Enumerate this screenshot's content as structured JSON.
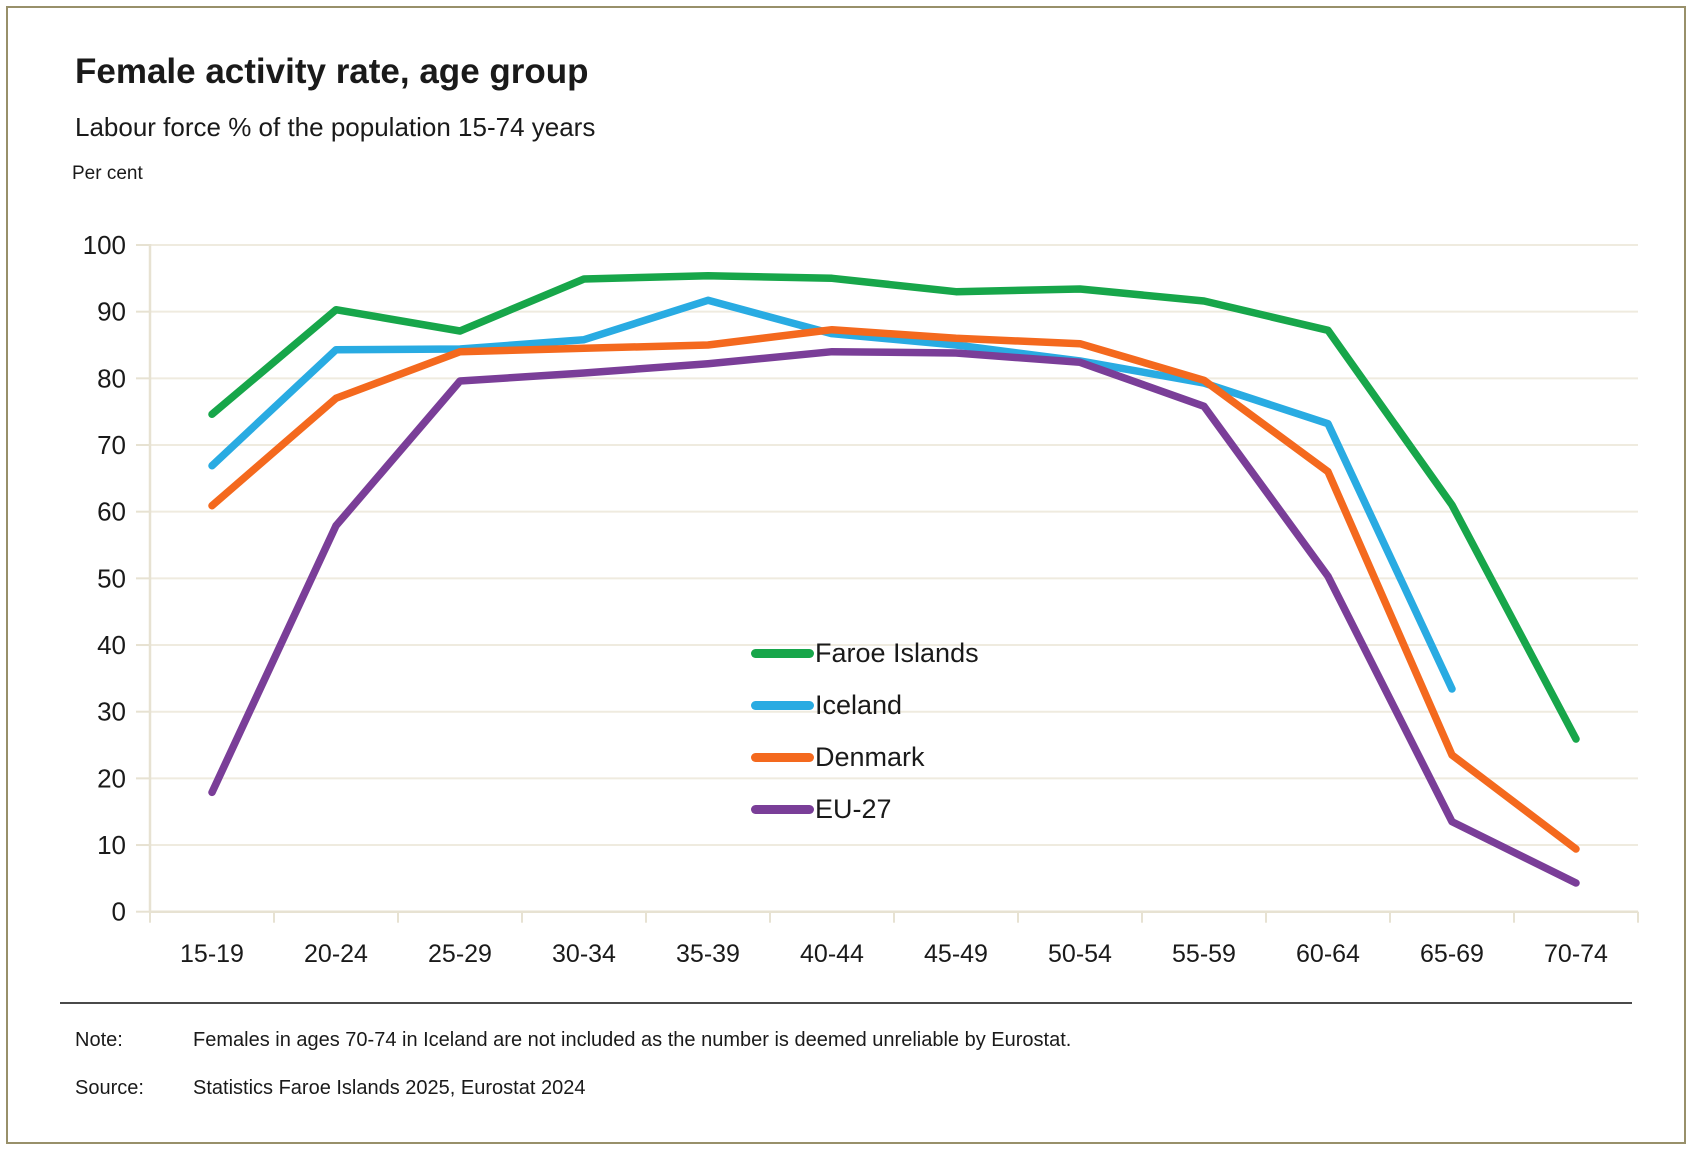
{
  "page": {
    "title": "Female activity rate, age group",
    "subtitle": "Labour force % of the population 15-74 years",
    "unit_label": "Per cent",
    "note_label": "Note:",
    "note_text": "Females in ages 70-74 in Iceland are not included as the number is deemed unreliable by Eurostat.",
    "source_label": "Source:",
    "source_text": "Statistics Faroe Islands 2025, Eurostat 2024",
    "border_color": "#98906a"
  },
  "chart_data": {
    "type": "line",
    "title": "Female activity rate, age group",
    "subtitle": "Labour force % of the population 15-74 years",
    "ylabel": "Per cent",
    "xlabel": "",
    "ylim": [
      0,
      100
    ],
    "yticks": [
      0,
      10,
      20,
      30,
      40,
      50,
      60,
      70,
      80,
      90,
      100
    ],
    "grid": "horizontal",
    "legend_position": "inside-center-right",
    "grid_color": "#efebdf",
    "axis_color": "#e7e2d2",
    "text_color": "#1a1a1a",
    "categories": [
      "15-19",
      "20-24",
      "25-29",
      "30-34",
      "35-39",
      "40-44",
      "45-49",
      "50-54",
      "55-59",
      "60-64",
      "65-69",
      "70-74"
    ],
    "series": [
      {
        "name": "Faroe Islands",
        "color": "#17a64a",
        "values": [
          74.6,
          90.3,
          87.1,
          94.9,
          95.4,
          95.0,
          93.0,
          93.4,
          91.6,
          87.2,
          61.0,
          25.9
        ]
      },
      {
        "name": "Iceland",
        "color": "#29abe2",
        "values": [
          66.9,
          84.3,
          84.4,
          85.8,
          91.7,
          86.7,
          85.0,
          82.6,
          79.3,
          73.2,
          33.4,
          null
        ]
      },
      {
        "name": "Denmark",
        "color": "#f4691e",
        "values": [
          60.9,
          77.0,
          84.0,
          84.5,
          85.0,
          87.3,
          86.0,
          85.2,
          79.7,
          66.0,
          23.5,
          9.4
        ]
      },
      {
        "name": "EU-27",
        "color": "#7a3e98",
        "values": [
          17.9,
          57.9,
          79.6,
          80.8,
          82.2,
          84.0,
          83.8,
          82.4,
          75.8,
          50.3,
          13.5,
          4.3
        ]
      }
    ]
  }
}
